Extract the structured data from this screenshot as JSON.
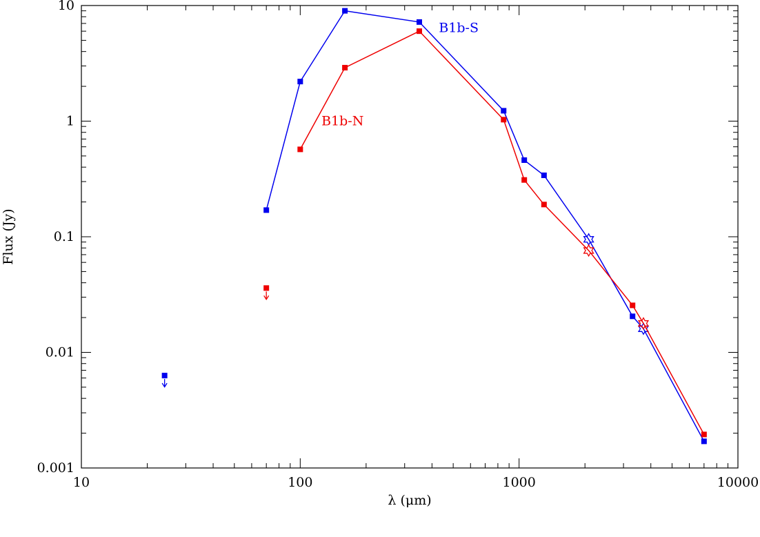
{
  "chart_data": {
    "type": "scatter",
    "xlabel": "λ (μm)",
    "ylabel": "Flux (Jy)",
    "xscale": "log",
    "yscale": "log",
    "xlim": [
      10,
      10000
    ],
    "ylim": [
      0.001,
      10
    ],
    "x_tick_labels": [
      "10",
      "100",
      "1000",
      "10000"
    ],
    "y_tick_labels": [
      "0.001",
      "0.01",
      "0.1",
      "1",
      "10"
    ],
    "grid": false,
    "series": [
      {
        "name": "B1b-S",
        "color": "#0000ee",
        "line": [
          [
            70,
            0.17
          ],
          [
            100,
            2.2
          ],
          [
            160,
            9.0
          ],
          [
            350,
            7.2
          ],
          [
            850,
            1.23
          ],
          [
            1056,
            0.46
          ],
          [
            1300,
            0.34
          ],
          [
            2080,
            0.095
          ],
          [
            3300,
            0.0205
          ],
          [
            3700,
            0.016
          ],
          [
            7000,
            0.0017
          ]
        ],
        "markers": [
          {
            "x": 70,
            "y": 0.17,
            "shape": "square"
          },
          {
            "x": 100,
            "y": 2.2,
            "shape": "square"
          },
          {
            "x": 160,
            "y": 9.0,
            "shape": "square"
          },
          {
            "x": 350,
            "y": 7.2,
            "shape": "square"
          },
          {
            "x": 850,
            "y": 1.23,
            "shape": "square"
          },
          {
            "x": 1056,
            "y": 0.46,
            "shape": "square"
          },
          {
            "x": 1300,
            "y": 0.34,
            "shape": "square"
          },
          {
            "x": 2080,
            "y": 0.095,
            "shape": "star"
          },
          {
            "x": 3300,
            "y": 0.0205,
            "shape": "square"
          },
          {
            "x": 3700,
            "y": 0.016,
            "shape": "star"
          },
          {
            "x": 7000,
            "y": 0.0017,
            "shape": "square"
          }
        ],
        "upper_limits": [
          [
            24,
            0.0063
          ]
        ]
      },
      {
        "name": "B1b-N",
        "color": "#ee0000",
        "line": [
          [
            100,
            0.57
          ],
          [
            160,
            2.9
          ],
          [
            350,
            6.0
          ],
          [
            850,
            1.03
          ],
          [
            1056,
            0.31
          ],
          [
            1300,
            0.19
          ],
          [
            2080,
            0.076
          ],
          [
            3300,
            0.0255
          ],
          [
            3700,
            0.0178
          ],
          [
            7000,
            0.00195
          ]
        ],
        "markers": [
          {
            "x": 100,
            "y": 0.57,
            "shape": "square"
          },
          {
            "x": 160,
            "y": 2.9,
            "shape": "square"
          },
          {
            "x": 350,
            "y": 6.0,
            "shape": "square"
          },
          {
            "x": 850,
            "y": 1.03,
            "shape": "square"
          },
          {
            "x": 1056,
            "y": 0.31,
            "shape": "square"
          },
          {
            "x": 1300,
            "y": 0.19,
            "shape": "square"
          },
          {
            "x": 2080,
            "y": 0.076,
            "shape": "star"
          },
          {
            "x": 3300,
            "y": 0.0255,
            "shape": "square"
          },
          {
            "x": 3700,
            "y": 0.0178,
            "shape": "star"
          },
          {
            "x": 7000,
            "y": 0.00195,
            "shape": "square"
          }
        ],
        "upper_limits": [
          [
            70,
            0.036
          ]
        ]
      }
    ],
    "annotations": [
      {
        "text": "B1b-S",
        "series": 0,
        "x": 430,
        "y": 5.9
      },
      {
        "text": "B1b-N",
        "series": 1,
        "x": 125,
        "y": 0.92
      }
    ]
  }
}
